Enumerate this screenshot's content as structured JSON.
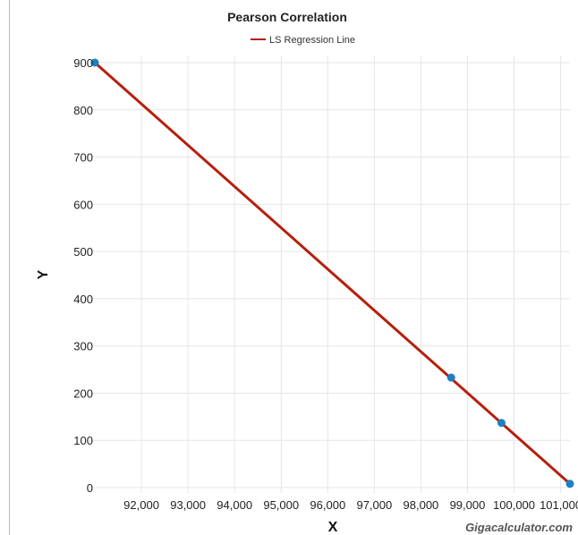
{
  "chart_data": {
    "type": "scatter",
    "title": "Pearson Correlation",
    "xlabel": "X",
    "ylabel": "Y",
    "xlim": [
      91000,
      101200
    ],
    "ylim": [
      0,
      900
    ],
    "x_ticks": [
      92000,
      93000,
      94000,
      95000,
      96000,
      97000,
      98000,
      99000,
      100000,
      101000
    ],
    "x_tick_labels": [
      "92,000",
      "93,000",
      "94,000",
      "95,000",
      "96,000",
      "97,000",
      "98,000",
      "99,000",
      "100,000",
      "101,000"
    ],
    "y_ticks": [
      0,
      100,
      200,
      300,
      400,
      500,
      600,
      700,
      800,
      900
    ],
    "y_tick_labels": [
      "0",
      "100",
      "200",
      "300",
      "400",
      "500",
      "600",
      "700",
      "800",
      "900"
    ],
    "grid": true,
    "legend_position": "top-center",
    "series": [
      {
        "kind": "points",
        "color": "#1f7fc0",
        "points": [
          {
            "x": 91000,
            "y": 900
          },
          {
            "x": 98650,
            "y": 233
          },
          {
            "x": 99730,
            "y": 137
          },
          {
            "x": 101200,
            "y": 8
          }
        ]
      },
      {
        "kind": "line",
        "name": "LS Regression Line",
        "color": "#b5200d",
        "points": [
          {
            "x": 91000,
            "y": 900
          },
          {
            "x": 101200,
            "y": 8
          }
        ]
      }
    ]
  },
  "watermark": "Gigacalculator.com"
}
